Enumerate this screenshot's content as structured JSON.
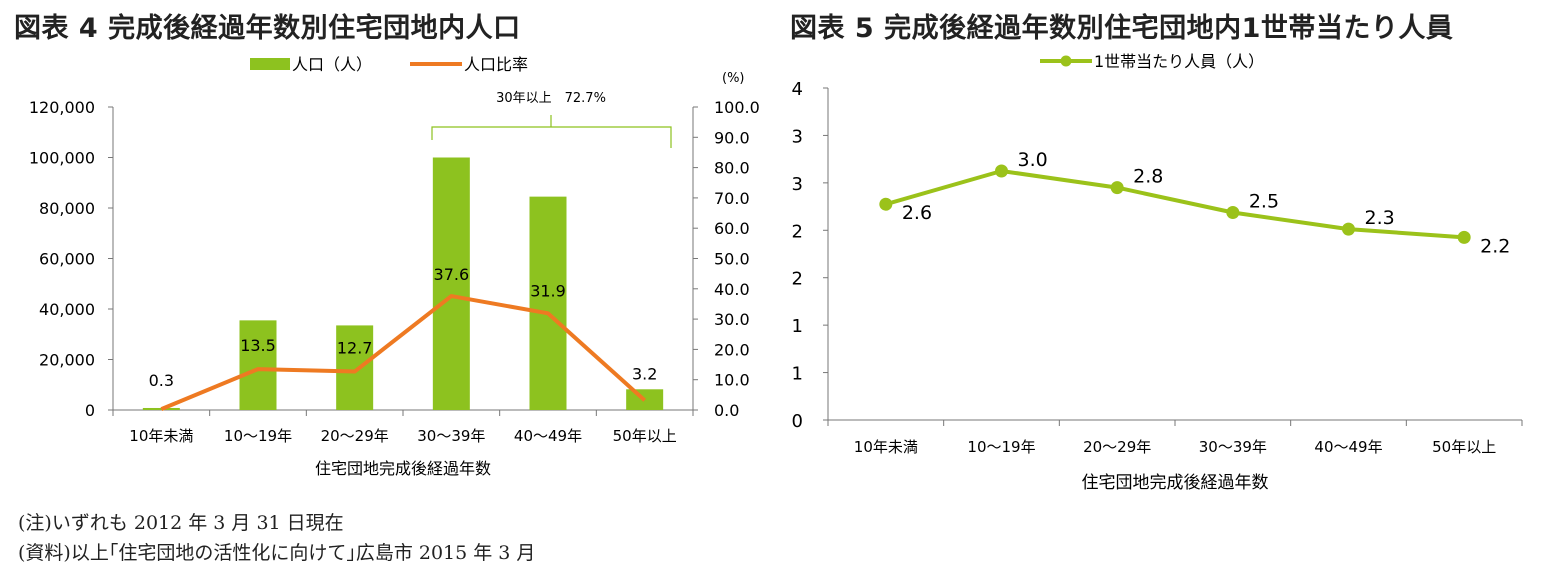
{
  "left_chart": {
    "title": "図表 4  完成後経過年数別住宅団地内人口",
    "legend_bar": "人口（人）",
    "legend_line": "人口比率",
    "right_axis_unit": "(%)",
    "annotation": "30年以上　72.7%",
    "xlabel": "住宅団地完成後経過年数"
  },
  "right_chart": {
    "title": "図表 5  完成後経過年数別住宅団地内1世帯当たり人員",
    "legend": "1世帯当たり人員（人）",
    "xlabel": "住宅団地完成後経過年数"
  },
  "notes": {
    "note1": "(注)いずれも 2012 年 3 月 31 日現在",
    "note2": "(資料)以上｢住宅団地の活性化に向けて｣広島市 2015 年 3 月"
  },
  "colors": {
    "bar": "#8dc21f",
    "line_left": "#ee7a22",
    "line_right": "#9bc21a",
    "axis": "#777777"
  },
  "chart_data": [
    {
      "type": "bar",
      "categories": [
        "10年未満",
        "10～19年",
        "20～29年",
        "30～39年",
        "40～49年",
        "50年以上"
      ],
      "series": [
        {
          "name": "人口（人）",
          "type": "bar",
          "axis": "left",
          "values": [
            800,
            35500,
            33500,
            100000,
            84500,
            8200
          ]
        },
        {
          "name": "人口比率",
          "type": "line",
          "axis": "right",
          "values": [
            0.3,
            13.5,
            12.7,
            37.6,
            31.9,
            3.2
          ]
        }
      ],
      "data_labels": [
        "0.3",
        "13.5",
        "12.7",
        "37.6",
        "31.9",
        "3.2"
      ],
      "ylim": [
        0,
        120000
      ],
      "yticks": [
        "0",
        "20,000",
        "40,000",
        "60,000",
        "80,000",
        "100,000",
        "120,000"
      ],
      "y2lim": [
        0,
        100
      ],
      "y2ticks": [
        "0.0",
        "10.0",
        "20.0",
        "30.0",
        "40.0",
        "50.0",
        "60.0",
        "70.0",
        "80.0",
        "90.0",
        "100.0"
      ],
      "legend_position": "top"
    },
    {
      "type": "line",
      "categories": [
        "10年未満",
        "10～19年",
        "20～29年",
        "30～39年",
        "40～49年",
        "50年以上"
      ],
      "series": [
        {
          "name": "1世帯当たり人員（人）",
          "values": [
            2.6,
            3.0,
            2.8,
            2.5,
            2.3,
            2.2
          ]
        }
      ],
      "data_labels": [
        "2.6",
        "3.0",
        "2.8",
        "2.5",
        "2.3",
        "2.2"
      ],
      "ylim": [
        0,
        4
      ],
      "yticks": [
        "0",
        "1",
        "1",
        "2",
        "2",
        "3",
        "3",
        "4"
      ],
      "legend_position": "top"
    }
  ]
}
